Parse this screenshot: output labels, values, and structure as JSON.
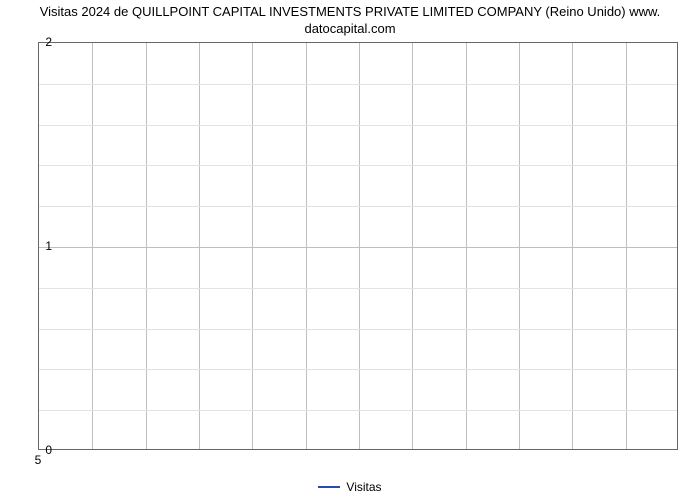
{
  "chart": {
    "type": "line",
    "title_line1": "Visitas 2024 de QUILLPOINT CAPITAL INVESTMENTS PRIVATE LIMITED COMPANY (Reino Unido) www.",
    "title_line2": "datocapital.com",
    "title_fontsize": 13,
    "title_color": "#000000",
    "background_color": "#ffffff",
    "plot_border_color": "#666666",
    "grid_major_color": "#bfbfbf",
    "grid_minor_color": "#e3e3e3",
    "xlim": [
      5,
      5
    ],
    "ylim": [
      0,
      2
    ],
    "ytick_major": [
      0,
      1,
      2
    ],
    "ytick_minor": [
      0.2,
      0.4,
      0.6,
      0.8,
      1.2,
      1.4,
      1.6,
      1.8
    ],
    "xtick_major": [
      5
    ],
    "x_grid_count": 12,
    "series": [
      {
        "name": "Visitas",
        "color": "#2b4ab0",
        "line_width": 2,
        "values": []
      }
    ],
    "legend": {
      "label": "Visitas",
      "swatch_color": "#2b4ab0",
      "fontsize": 12
    },
    "tick_fontsize": 12,
    "tick_color": "#000000"
  }
}
